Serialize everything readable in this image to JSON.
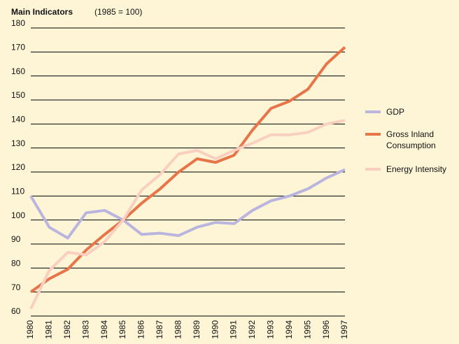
{
  "chart_data": {
    "type": "line",
    "title": "Main Indicators",
    "subtitle": "(1985 = 100)",
    "categories": [
      "1980",
      "1981",
      "1982",
      "1983",
      "1984",
      "1985",
      "1986",
      "1987",
      "1988",
      "1989",
      "1990",
      "1991",
      "1992",
      "1993",
      "1994",
      "1995",
      "1996",
      "1997"
    ],
    "series": [
      {
        "name": "GDP",
        "color": "#b9b5df",
        "values": [
          110,
          97,
          92.5,
          103,
          104,
          100,
          94,
          94.5,
          93.5,
          97,
          99,
          98.5,
          104,
          108,
          110,
          113,
          117.5,
          121
        ]
      },
      {
        "name": "Gross Inland Consumption",
        "color": "#e8744a",
        "values": [
          70,
          75.5,
          79.5,
          87.5,
          94,
          100,
          107,
          113,
          120,
          125.5,
          124,
          127,
          137.5,
          146.5,
          149.5,
          154.5,
          165,
          172
        ]
      },
      {
        "name": "Energy Intensity",
        "color": "#f9cfc0",
        "values": [
          63,
          79,
          86.5,
          85.5,
          91,
          100,
          112.5,
          119,
          127.5,
          129,
          125.5,
          129,
          132,
          135.5,
          135.5,
          136.5,
          140,
          141.5
        ]
      }
    ],
    "ylim": [
      60,
      180
    ],
    "yticks": [
      60,
      70,
      80,
      90,
      100,
      110,
      120,
      130,
      140,
      150,
      160,
      170,
      180
    ],
    "grid": true
  }
}
